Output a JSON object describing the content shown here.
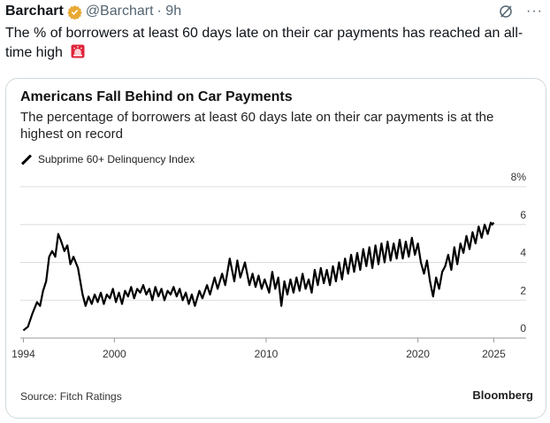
{
  "post": {
    "author": "Barchart",
    "handle": "@Barchart",
    "time": "· 9h",
    "more": "···",
    "text": "The % of borrowers at least 60 days late on their car payments has reached an all-time high"
  },
  "icons": {
    "verified": "verified-badge-icon",
    "grok": "grok-icon",
    "more": "more-icon",
    "siren": "siren-emoji-icon"
  },
  "colors": {
    "verified": "#e8a935",
    "line": "#000000",
    "grid": "#dddddd",
    "siren": "#e0243a"
  },
  "card": {
    "source": "Source: Fitch Ratings",
    "brand": "Bloomberg"
  },
  "chart_data": {
    "type": "line",
    "title": "Americans Fall Behind on Car Payments",
    "subtitle": "The percentage of borrowers at least 60 days late on their car payments is at the highest on record",
    "legend": "Subprime 60+ Delinquency Index",
    "xlabel": "",
    "ylabel": "",
    "x_ticks": [
      1994,
      2000,
      2010,
      2020,
      2025
    ],
    "y_ticks": [
      {
        "value": 0,
        "label": "0"
      },
      {
        "value": 2,
        "label": "2"
      },
      {
        "value": 4,
        "label": "4"
      },
      {
        "value": 6,
        "label": "6"
      },
      {
        "value": 8,
        "label": "8%"
      }
    ],
    "xlim": [
      1993.8,
      2025.5
    ],
    "ylim": [
      0,
      8
    ],
    "grid": true,
    "series": [
      {
        "name": "Subprime 60+ Delinquency Index",
        "points": [
          [
            1994.0,
            0.4
          ],
          [
            1994.3,
            0.6
          ],
          [
            1994.6,
            1.3
          ],
          [
            1994.9,
            1.9
          ],
          [
            1995.1,
            1.7
          ],
          [
            1995.3,
            2.5
          ],
          [
            1995.5,
            3.0
          ],
          [
            1995.7,
            4.3
          ],
          [
            1995.9,
            4.6
          ],
          [
            1996.1,
            4.3
          ],
          [
            1996.3,
            5.5
          ],
          [
            1996.5,
            5.1
          ],
          [
            1996.7,
            4.6
          ],
          [
            1996.9,
            4.9
          ],
          [
            1997.1,
            3.9
          ],
          [
            1997.3,
            4.3
          ],
          [
            1997.6,
            3.7
          ],
          [
            1997.9,
            2.3
          ],
          [
            1998.1,
            1.7
          ],
          [
            1998.3,
            2.2
          ],
          [
            1998.5,
            1.8
          ],
          [
            1998.7,
            2.3
          ],
          [
            1998.9,
            1.9
          ],
          [
            1999.1,
            2.4
          ],
          [
            1999.3,
            1.8
          ],
          [
            1999.5,
            2.3
          ],
          [
            1999.7,
            2.1
          ],
          [
            1999.9,
            2.6
          ],
          [
            2000.1,
            1.9
          ],
          [
            2000.3,
            2.4
          ],
          [
            2000.5,
            1.8
          ],
          [
            2000.7,
            2.5
          ],
          [
            2000.9,
            2.2
          ],
          [
            2001.1,
            2.7
          ],
          [
            2001.3,
            2.1
          ],
          [
            2001.5,
            2.6
          ],
          [
            2001.7,
            2.4
          ],
          [
            2001.9,
            2.8
          ],
          [
            2002.1,
            2.3
          ],
          [
            2002.3,
            2.6
          ],
          [
            2002.5,
            2.0
          ],
          [
            2002.7,
            2.7
          ],
          [
            2002.9,
            2.2
          ],
          [
            2003.1,
            2.6
          ],
          [
            2003.3,
            2.0
          ],
          [
            2003.5,
            2.5
          ],
          [
            2003.7,
            2.3
          ],
          [
            2003.9,
            2.7
          ],
          [
            2004.1,
            2.2
          ],
          [
            2004.3,
            2.6
          ],
          [
            2004.5,
            2.0
          ],
          [
            2004.7,
            2.4
          ],
          [
            2004.9,
            1.8
          ],
          [
            2005.1,
            2.3
          ],
          [
            2005.3,
            1.7
          ],
          [
            2005.6,
            2.5
          ],
          [
            2005.8,
            2.1
          ],
          [
            2006.1,
            2.8
          ],
          [
            2006.3,
            2.3
          ],
          [
            2006.6,
            3.2
          ],
          [
            2006.8,
            2.6
          ],
          [
            2007.1,
            3.4
          ],
          [
            2007.3,
            2.8
          ],
          [
            2007.6,
            4.2
          ],
          [
            2007.9,
            3.0
          ],
          [
            2008.1,
            4.1
          ],
          [
            2008.3,
            3.2
          ],
          [
            2008.6,
            4.0
          ],
          [
            2008.9,
            2.8
          ],
          [
            2009.1,
            3.4
          ],
          [
            2009.3,
            2.7
          ],
          [
            2009.5,
            3.3
          ],
          [
            2009.7,
            2.6
          ],
          [
            2009.9,
            3.1
          ],
          [
            2010.2,
            2.4
          ],
          [
            2010.4,
            3.5
          ],
          [
            2010.6,
            2.6
          ],
          [
            2010.8,
            3.2
          ],
          [
            2011.0,
            1.7
          ],
          [
            2011.2,
            3.0
          ],
          [
            2011.4,
            2.3
          ],
          [
            2011.6,
            3.1
          ],
          [
            2011.8,
            2.4
          ],
          [
            2012.0,
            3.2
          ],
          [
            2012.2,
            2.5
          ],
          [
            2012.4,
            3.4
          ],
          [
            2012.6,
            2.6
          ],
          [
            2012.8,
            3.1
          ],
          [
            2013.0,
            2.4
          ],
          [
            2013.2,
            3.6
          ],
          [
            2013.4,
            2.8
          ],
          [
            2013.6,
            3.7
          ],
          [
            2013.8,
            2.9
          ],
          [
            2014.0,
            3.6
          ],
          [
            2014.2,
            2.8
          ],
          [
            2014.4,
            3.8
          ],
          [
            2014.6,
            3.0
          ],
          [
            2014.8,
            4.0
          ],
          [
            2015.0,
            3.1
          ],
          [
            2015.2,
            4.2
          ],
          [
            2015.4,
            3.4
          ],
          [
            2015.6,
            4.4
          ],
          [
            2015.8,
            3.5
          ],
          [
            2016.0,
            4.5
          ],
          [
            2016.2,
            3.6
          ],
          [
            2016.4,
            4.7
          ],
          [
            2016.6,
            3.8
          ],
          [
            2016.8,
            4.8
          ],
          [
            2017.0,
            3.7
          ],
          [
            2017.2,
            4.9
          ],
          [
            2017.4,
            3.9
          ],
          [
            2017.6,
            5.0
          ],
          [
            2017.8,
            4.0
          ],
          [
            2018.0,
            5.1
          ],
          [
            2018.2,
            4.1
          ],
          [
            2018.4,
            5.0
          ],
          [
            2018.6,
            4.2
          ],
          [
            2018.8,
            5.2
          ],
          [
            2019.0,
            4.2
          ],
          [
            2019.2,
            5.1
          ],
          [
            2019.4,
            4.3
          ],
          [
            2019.6,
            5.3
          ],
          [
            2019.8,
            4.4
          ],
          [
            2020.0,
            5.0
          ],
          [
            2020.2,
            4.0
          ],
          [
            2020.4,
            3.4
          ],
          [
            2020.6,
            4.1
          ],
          [
            2020.8,
            3.0
          ],
          [
            2021.0,
            2.2
          ],
          [
            2021.2,
            3.2
          ],
          [
            2021.4,
            2.6
          ],
          [
            2021.6,
            3.5
          ],
          [
            2021.8,
            3.8
          ],
          [
            2022.0,
            4.4
          ],
          [
            2022.2,
            3.6
          ],
          [
            2022.4,
            4.8
          ],
          [
            2022.6,
            3.9
          ],
          [
            2022.8,
            5.0
          ],
          [
            2023.0,
            4.5
          ],
          [
            2023.2,
            5.4
          ],
          [
            2023.4,
            4.7
          ],
          [
            2023.6,
            5.6
          ],
          [
            2023.8,
            5.0
          ],
          [
            2024.0,
            5.9
          ],
          [
            2024.2,
            5.3
          ],
          [
            2024.4,
            6.0
          ],
          [
            2024.6,
            5.5
          ],
          [
            2024.8,
            6.1
          ],
          [
            2024.9,
            6.0
          ],
          [
            2025.0,
            6.1
          ]
        ]
      }
    ]
  }
}
